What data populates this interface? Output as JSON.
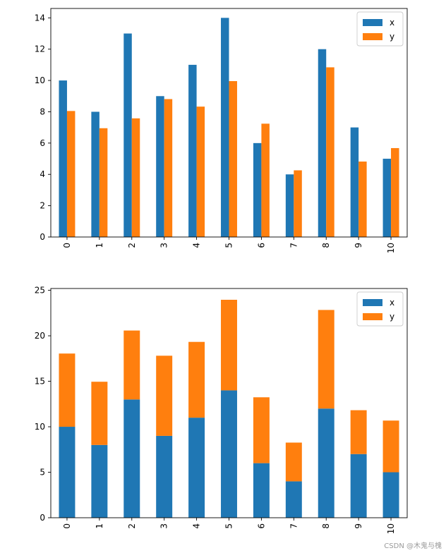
{
  "chart_data": [
    {
      "type": "bar",
      "stacked": false,
      "categories": [
        "0",
        "1",
        "2",
        "3",
        "4",
        "5",
        "6",
        "7",
        "8",
        "9",
        "10"
      ],
      "series": [
        {
          "name": "x",
          "color": "#1f77b4",
          "values": [
            10,
            8,
            13,
            9,
            11,
            14,
            6,
            4,
            12,
            7,
            5
          ]
        },
        {
          "name": "y",
          "color": "#ff7f0e",
          "values": [
            8.05,
            6.95,
            7.58,
            8.81,
            8.33,
            9.96,
            7.24,
            4.26,
            10.84,
            4.82,
            5.68
          ]
        }
      ],
      "yticks": [
        "0",
        "2",
        "4",
        "6",
        "8",
        "10",
        "12",
        "14"
      ],
      "ylim": [
        0,
        14.6
      ],
      "legend": "top-right",
      "grid": false
    },
    {
      "type": "bar",
      "stacked": true,
      "categories": [
        "0",
        "1",
        "2",
        "3",
        "4",
        "5",
        "6",
        "7",
        "8",
        "9",
        "10"
      ],
      "series": [
        {
          "name": "x",
          "color": "#1f77b4",
          "values": [
            10,
            8,
            13,
            9,
            11,
            14,
            6,
            4,
            12,
            7,
            5
          ]
        },
        {
          "name": "y",
          "color": "#ff7f0e",
          "values": [
            8.05,
            6.95,
            7.58,
            8.81,
            8.33,
            9.96,
            7.24,
            4.26,
            10.84,
            4.82,
            5.68
          ]
        }
      ],
      "yticks": [
        "0",
        "5",
        "10",
        "15",
        "20",
        "25"
      ],
      "ylim": [
        0,
        25.2
      ],
      "legend": "top-right",
      "grid": false
    }
  ],
  "watermark": "CSDN @木鬼与槐"
}
